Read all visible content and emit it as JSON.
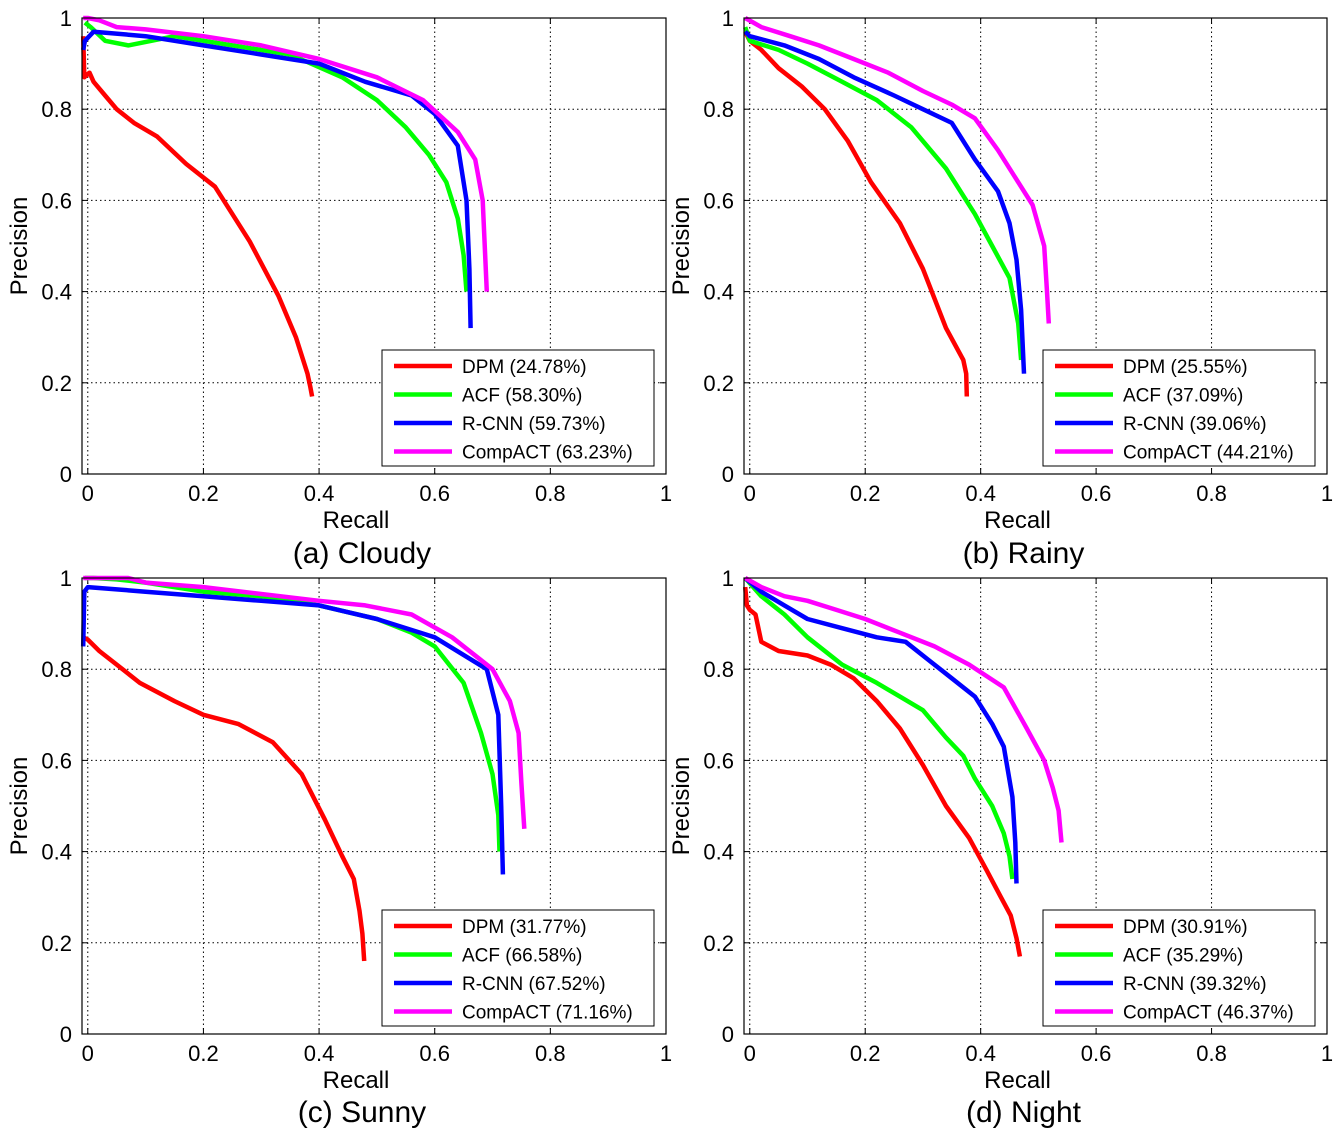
{
  "chart_data": [
    {
      "type": "line",
      "caption": "(a) Cloudy",
      "xlabel": "Recall",
      "ylabel": "Precision",
      "xlim": [
        -0.01,
        1
      ],
      "ylim": [
        0,
        1
      ],
      "xticks": [
        "0",
        "0.2",
        "0.4",
        "0.6",
        "0.8",
        "1"
      ],
      "yticks": [
        "0",
        "0.2",
        "0.4",
        "0.6",
        "0.8",
        "1"
      ],
      "grid": true,
      "legend_position": "bottom-right",
      "series": [
        {
          "name": "DPM",
          "legend_label": "DPM (24.78%)",
          "color": "#ff0000",
          "x": [
            -0.008,
            -0.006,
            -0.002,
            0.003,
            0.01,
            0.03,
            0.05,
            0.08,
            0.12,
            0.17,
            0.22,
            0.28,
            0.33,
            0.36,
            0.38,
            0.385,
            0.388
          ],
          "y": [
            0.96,
            0.87,
            0.875,
            0.88,
            0.86,
            0.83,
            0.8,
            0.77,
            0.74,
            0.68,
            0.63,
            0.51,
            0.39,
            0.3,
            0.22,
            0.19,
            0.17
          ]
        },
        {
          "name": "ACF",
          "legend_label": "ACF (58.30%)",
          "color": "#00ff00",
          "x": [
            -0.005,
            0.005,
            0.03,
            0.07,
            0.15,
            0.25,
            0.35,
            0.44,
            0.5,
            0.55,
            0.59,
            0.62,
            0.64,
            0.65,
            0.655
          ],
          "y": [
            0.99,
            0.98,
            0.95,
            0.94,
            0.96,
            0.94,
            0.92,
            0.87,
            0.82,
            0.76,
            0.7,
            0.64,
            0.56,
            0.48,
            0.4
          ]
        },
        {
          "name": "R-CNN",
          "legend_label": "R-CNN (59.73%)",
          "color": "#0000ff",
          "x": [
            -0.008,
            -0.005,
            0.01,
            0.1,
            0.2,
            0.3,
            0.4,
            0.48,
            0.56,
            0.6,
            0.64,
            0.655,
            0.66,
            0.662
          ],
          "y": [
            0.93,
            0.95,
            0.97,
            0.96,
            0.94,
            0.92,
            0.9,
            0.86,
            0.83,
            0.79,
            0.72,
            0.6,
            0.45,
            0.32
          ]
        },
        {
          "name": "CompACT",
          "legend_label": "CompACT (63.23%)",
          "color": "#ff00ff",
          "x": [
            -0.008,
            0.0,
            0.02,
            0.05,
            0.1,
            0.2,
            0.3,
            0.4,
            0.5,
            0.58,
            0.64,
            0.67,
            0.683,
            0.69
          ],
          "y": [
            1.0,
            1.0,
            0.995,
            0.98,
            0.975,
            0.96,
            0.94,
            0.91,
            0.87,
            0.82,
            0.75,
            0.69,
            0.6,
            0.4
          ]
        }
      ]
    },
    {
      "type": "line",
      "caption": "(b) Rainy",
      "xlabel": "Recall",
      "ylabel": "Precision",
      "xlim": [
        -0.01,
        1
      ],
      "ylim": [
        0,
        1
      ],
      "xticks": [
        "0",
        "0.2",
        "0.4",
        "0.6",
        "0.8",
        "1"
      ],
      "yticks": [
        "0",
        "0.2",
        "0.4",
        "0.6",
        "0.8",
        "1"
      ],
      "grid": true,
      "legend_position": "bottom-right",
      "series": [
        {
          "name": "DPM",
          "legend_label": "DPM (25.55%)",
          "color": "#ff0000",
          "x": [
            -0.008,
            0.0,
            0.02,
            0.05,
            0.09,
            0.13,
            0.17,
            0.21,
            0.26,
            0.3,
            0.34,
            0.37,
            0.375,
            0.376
          ],
          "y": [
            0.97,
            0.95,
            0.93,
            0.89,
            0.85,
            0.8,
            0.73,
            0.64,
            0.55,
            0.45,
            0.32,
            0.25,
            0.22,
            0.17
          ]
        },
        {
          "name": "ACF",
          "legend_label": "ACF (37.09%)",
          "color": "#00ff00",
          "x": [
            -0.008,
            0.0,
            0.05,
            0.1,
            0.16,
            0.22,
            0.28,
            0.34,
            0.39,
            0.42,
            0.45,
            0.465,
            0.47
          ],
          "y": [
            0.98,
            0.95,
            0.93,
            0.9,
            0.86,
            0.82,
            0.76,
            0.67,
            0.57,
            0.5,
            0.43,
            0.33,
            0.25
          ]
        },
        {
          "name": "R-CNN",
          "legend_label": "R-CNN (39.06%)",
          "color": "#0000ff",
          "x": [
            -0.008,
            0.0,
            0.06,
            0.12,
            0.18,
            0.25,
            0.3,
            0.35,
            0.39,
            0.43,
            0.45,
            0.462,
            0.47,
            0.475
          ],
          "y": [
            0.97,
            0.96,
            0.94,
            0.91,
            0.87,
            0.83,
            0.8,
            0.77,
            0.69,
            0.62,
            0.55,
            0.47,
            0.36,
            0.22
          ]
        },
        {
          "name": "CompACT",
          "legend_label": "CompACT (44.21%)",
          "color": "#ff00ff",
          "x": [
            -0.008,
            0.02,
            0.07,
            0.12,
            0.18,
            0.24,
            0.3,
            0.35,
            0.39,
            0.43,
            0.46,
            0.49,
            0.51,
            0.515,
            0.518
          ],
          "y": [
            1.0,
            0.98,
            0.96,
            0.94,
            0.91,
            0.88,
            0.84,
            0.81,
            0.78,
            0.71,
            0.65,
            0.59,
            0.5,
            0.4,
            0.33
          ]
        }
      ]
    },
    {
      "type": "line",
      "caption": "(c) Sunny",
      "xlabel": "Recall",
      "ylabel": "Precision",
      "xlim": [
        -0.01,
        1
      ],
      "ylim": [
        0,
        1
      ],
      "xticks": [
        "0",
        "0.2",
        "0.4",
        "0.6",
        "0.8",
        "1"
      ],
      "yticks": [
        "0",
        "0.2",
        "0.4",
        "0.6",
        "0.8",
        "1"
      ],
      "grid": true,
      "legend_position": "bottom-right",
      "series": [
        {
          "name": "DPM",
          "legend_label": "DPM (31.77%)",
          "color": "#ff0000",
          "x": [
            -0.008,
            0.0,
            0.02,
            0.05,
            0.09,
            0.15,
            0.2,
            0.26,
            0.32,
            0.37,
            0.41,
            0.44,
            0.46,
            0.47,
            0.475,
            0.478
          ],
          "y": [
            0.87,
            0.865,
            0.84,
            0.81,
            0.77,
            0.73,
            0.7,
            0.68,
            0.64,
            0.57,
            0.47,
            0.39,
            0.34,
            0.27,
            0.22,
            0.16
          ]
        },
        {
          "name": "ACF",
          "legend_label": "ACF (66.58%)",
          "color": "#00ff00",
          "x": [
            -0.005,
            0.01,
            0.05,
            0.1,
            0.2,
            0.3,
            0.4,
            0.5,
            0.56,
            0.6,
            0.65,
            0.68,
            0.7,
            0.71,
            0.712
          ],
          "y": [
            1.0,
            1.0,
            0.997,
            0.99,
            0.97,
            0.96,
            0.94,
            0.91,
            0.88,
            0.85,
            0.77,
            0.66,
            0.57,
            0.48,
            0.4
          ]
        },
        {
          "name": "R-CNN",
          "legend_label": "R-CNN (67.52%)",
          "color": "#0000ff",
          "x": [
            -0.008,
            -0.006,
            0.0,
            0.05,
            0.1,
            0.2,
            0.3,
            0.4,
            0.5,
            0.6,
            0.69,
            0.71,
            0.715,
            0.718
          ],
          "y": [
            0.85,
            0.97,
            0.98,
            0.975,
            0.97,
            0.96,
            0.95,
            0.94,
            0.91,
            0.87,
            0.8,
            0.7,
            0.5,
            0.35
          ]
        },
        {
          "name": "CompACT",
          "legend_label": "CompACT (71.16%)",
          "color": "#ff00ff",
          "x": [
            -0.008,
            0.0,
            0.03,
            0.07,
            0.1,
            0.2,
            0.3,
            0.4,
            0.48,
            0.56,
            0.63,
            0.7,
            0.73,
            0.745,
            0.75,
            0.755
          ],
          "y": [
            1.0,
            1.0,
            1.0,
            1.0,
            0.99,
            0.98,
            0.965,
            0.95,
            0.94,
            0.92,
            0.87,
            0.8,
            0.73,
            0.66,
            0.55,
            0.45
          ]
        }
      ]
    },
    {
      "type": "line",
      "caption": "(d) Night",
      "xlabel": "Recall",
      "ylabel": "Precision",
      "xlim": [
        -0.01,
        1
      ],
      "ylim": [
        0,
        1
      ],
      "xticks": [
        "0",
        "0.2",
        "0.4",
        "0.6",
        "0.8",
        "1"
      ],
      "yticks": [
        "0",
        "0.2",
        "0.4",
        "0.6",
        "0.8",
        "1"
      ],
      "grid": true,
      "legend_position": "bottom-right",
      "series": [
        {
          "name": "DPM",
          "legend_label": "DPM (30.91%)",
          "color": "#ff0000",
          "x": [
            -0.008,
            -0.005,
            0.0,
            0.01,
            0.02,
            0.05,
            0.1,
            0.14,
            0.18,
            0.22,
            0.26,
            0.3,
            0.34,
            0.38,
            0.41,
            0.435,
            0.452,
            0.462,
            0.468
          ],
          "y": [
            0.98,
            0.94,
            0.93,
            0.92,
            0.86,
            0.84,
            0.83,
            0.81,
            0.78,
            0.73,
            0.67,
            0.59,
            0.5,
            0.43,
            0.36,
            0.3,
            0.26,
            0.21,
            0.17
          ]
        },
        {
          "name": "ACF",
          "legend_label": "ACF (35.29%)",
          "color": "#00ff00",
          "x": [
            -0.008,
            0.02,
            0.06,
            0.1,
            0.16,
            0.22,
            0.26,
            0.3,
            0.34,
            0.37,
            0.39,
            0.42,
            0.44,
            0.45,
            0.455
          ],
          "y": [
            1.0,
            0.96,
            0.92,
            0.87,
            0.81,
            0.77,
            0.74,
            0.71,
            0.65,
            0.61,
            0.56,
            0.5,
            0.44,
            0.39,
            0.34
          ]
        },
        {
          "name": "R-CNN",
          "legend_label": "R-CNN (39.32%)",
          "color": "#0000ff",
          "x": [
            -0.008,
            0.02,
            0.06,
            0.1,
            0.16,
            0.22,
            0.27,
            0.31,
            0.35,
            0.39,
            0.42,
            0.44,
            0.455,
            0.46,
            0.462
          ],
          "y": [
            1.0,
            0.97,
            0.94,
            0.91,
            0.89,
            0.87,
            0.86,
            0.82,
            0.78,
            0.74,
            0.68,
            0.63,
            0.52,
            0.42,
            0.33
          ]
        },
        {
          "name": "CompACT",
          "legend_label": "CompACT (46.37%)",
          "color": "#ff00ff",
          "x": [
            -0.008,
            0.02,
            0.06,
            0.1,
            0.15,
            0.2,
            0.26,
            0.32,
            0.38,
            0.44,
            0.48,
            0.51,
            0.525,
            0.535,
            0.54
          ],
          "y": [
            1.0,
            0.98,
            0.96,
            0.95,
            0.93,
            0.91,
            0.88,
            0.85,
            0.81,
            0.76,
            0.67,
            0.6,
            0.54,
            0.49,
            0.42
          ]
        }
      ]
    }
  ]
}
